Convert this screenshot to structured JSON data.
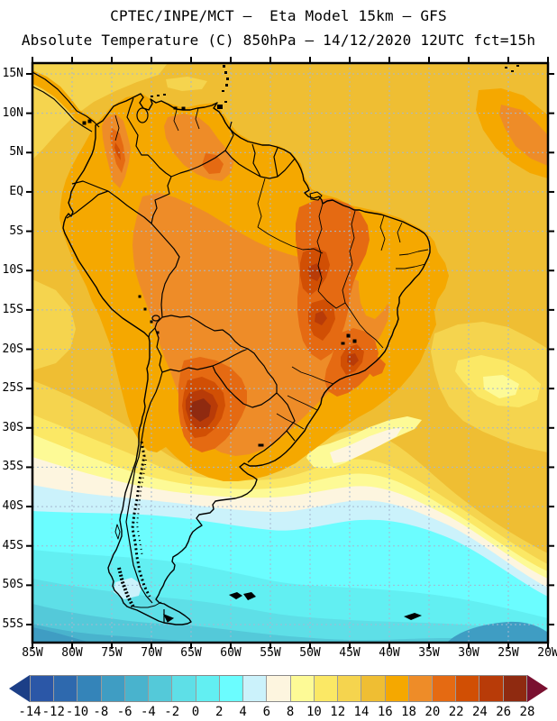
{
  "header": {
    "title_line1": "CPTEC/INPE/MCT –  Eta Model 15km – GFS",
    "title_line2": "Absolute Temperature (C) 850hPa – 14/12/2020 12UTC fct=15h"
  },
  "map": {
    "region_label": "South America",
    "lat_labels": [
      "15N",
      "10N",
      "5N",
      "EQ",
      "5S",
      "10S",
      "15S",
      "20S",
      "25S",
      "30S",
      "35S",
      "40S",
      "45S",
      "50S",
      "55S"
    ],
    "lon_labels": [
      "85W",
      "80W",
      "75W",
      "70W",
      "65W",
      "60W",
      "55W",
      "50W",
      "45W",
      "40W",
      "35W",
      "30W",
      "25W",
      "20W"
    ],
    "grid_color": "#A4B8D0",
    "border_color": "#000000"
  },
  "palette": {
    "tm14": "#2B57A7",
    "tm12": "#2E69AE",
    "tm10": "#3484B9",
    "tm8": "#3F9DC3",
    "tm6": "#49B3CD",
    "tm4": "#54C9D9",
    "tm2": "#5EDFE7",
    "t0": "#62EFF2",
    "t2": "#6BFDFF",
    "t4": "#CBF2FB",
    "t6": "#FDF5DF",
    "t8": "#FDFA96",
    "t10": "#FBE865",
    "t12": "#F5D44E",
    "t14": "#EFBE33",
    "t16": "#F5A800",
    "t18": "#EE8C28",
    "t20": "#E56A12",
    "t22": "#D14F04",
    "t24": "#B83B08",
    "t26": "#8F2A10"
  },
  "colorbar": {
    "tick_labels": [
      "-14",
      "-12",
      "-10",
      "-8",
      "-6",
      "-4",
      "-2",
      "0",
      "2",
      "4",
      "6",
      "8",
      "10",
      "12",
      "14",
      "16",
      "18",
      "20",
      "22",
      "24",
      "26",
      "28"
    ],
    "cell_order": [
      "tm14",
      "tm12",
      "tm10",
      "tm8",
      "tm6",
      "tm4",
      "tm2",
      "t0",
      "t2",
      "t4",
      "t6",
      "t8",
      "t10",
      "t12",
      "t14",
      "t16",
      "t18",
      "t20",
      "t22",
      "t24",
      "t26"
    ],
    "left_arrow_color": "#1C3F87",
    "right_arrow_color": "#7A1030"
  },
  "chart_data": {
    "type": "heatmap",
    "variable": "Absolute Temperature (C) at 850 hPa",
    "model": "Eta Model 15km - GFS",
    "valid": "14/12/2020 12UTC fct=15h",
    "units": "C",
    "scale_min": -14,
    "scale_max": 28,
    "scale_step": 2,
    "lat_range": [
      "15N",
      "55S"
    ],
    "lon_range": [
      "85W",
      "20W"
    ]
  }
}
